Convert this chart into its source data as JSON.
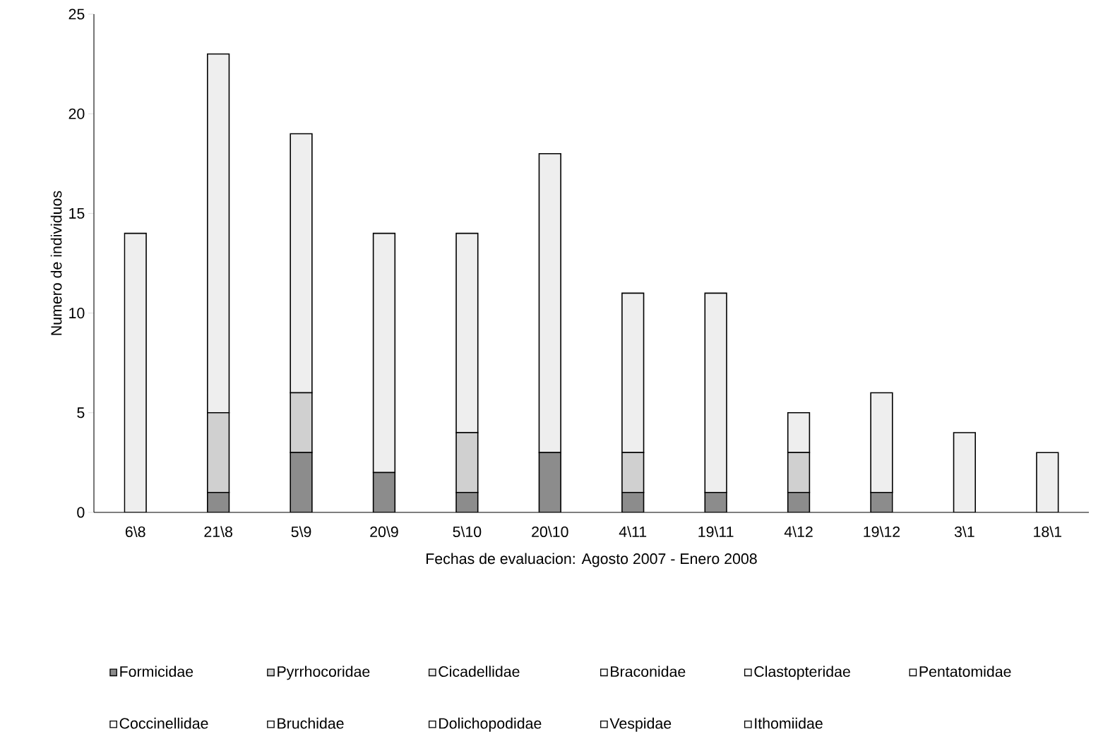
{
  "chart_data": {
    "type": "bar",
    "stacked": true,
    "xlabel": "Fechas de evaluacion: Agosto 2007 - Enero 2008",
    "ylabel": "Numero de individuos",
    "categories": [
      "6\\8",
      "21\\8",
      "5\\9",
      "20\\9",
      "5\\10",
      "20\\10",
      "4\\11",
      "19\\11",
      "4\\12",
      "19\\12",
      "3\\1",
      "18\\1"
    ],
    "ylim": [
      0,
      25
    ],
    "yticks": [
      0,
      5,
      10,
      15,
      20,
      25
    ],
    "legend": "bottom",
    "grid": false,
    "series": [
      {
        "name": "Formicidae",
        "color": "#8c8c8c",
        "values": [
          0,
          1,
          3,
          2,
          1,
          3,
          1,
          1,
          1,
          1,
          0,
          0
        ]
      },
      {
        "name": "Pyrrhocoridae",
        "color": "#d0d0d0",
        "values": [
          0,
          4,
          3,
          0,
          3,
          0,
          2,
          0,
          2,
          0,
          0,
          0
        ]
      },
      {
        "name": "Cicadellidae",
        "color": "#eeeeee",
        "values": [
          14,
          18,
          13,
          12,
          10,
          15,
          8,
          10,
          2,
          5,
          4,
          3
        ]
      },
      {
        "name": "Braconidae",
        "color": "#ffffff",
        "values": [
          0,
          0,
          0,
          0,
          0,
          0,
          0,
          0,
          0,
          0,
          0,
          0
        ]
      },
      {
        "name": "Clastopteridae",
        "color": "#ffffff",
        "values": [
          0,
          0,
          0,
          0,
          0,
          0,
          0,
          0,
          0,
          0,
          0,
          0
        ]
      },
      {
        "name": "Pentatomidae",
        "color": "#ffffff",
        "values": [
          0,
          0,
          0,
          0,
          0,
          0,
          0,
          0,
          0,
          0,
          0,
          0
        ]
      },
      {
        "name": "Coccinellidae",
        "color": "#ffffff",
        "values": [
          0,
          0,
          0,
          0,
          0,
          0,
          0,
          0,
          0,
          0,
          0,
          0
        ]
      },
      {
        "name": "Bruchidae",
        "color": "#ffffff",
        "values": [
          0,
          0,
          0,
          0,
          0,
          0,
          0,
          0,
          0,
          0,
          0,
          0
        ]
      },
      {
        "name": "Dolichopodidae",
        "color": "#ffffff",
        "values": [
          0,
          0,
          0,
          0,
          0,
          0,
          0,
          0,
          0,
          0,
          0,
          0
        ]
      },
      {
        "name": "Vespidae",
        "color": "#ffffff",
        "values": [
          0,
          0,
          0,
          0,
          0,
          0,
          0,
          0,
          0,
          0,
          0,
          0
        ]
      },
      {
        "name": "Ithomiidae",
        "color": "#ffffff",
        "values": [
          0,
          0,
          0,
          0,
          0,
          0,
          0,
          0,
          0,
          0,
          0,
          0
        ]
      }
    ]
  }
}
